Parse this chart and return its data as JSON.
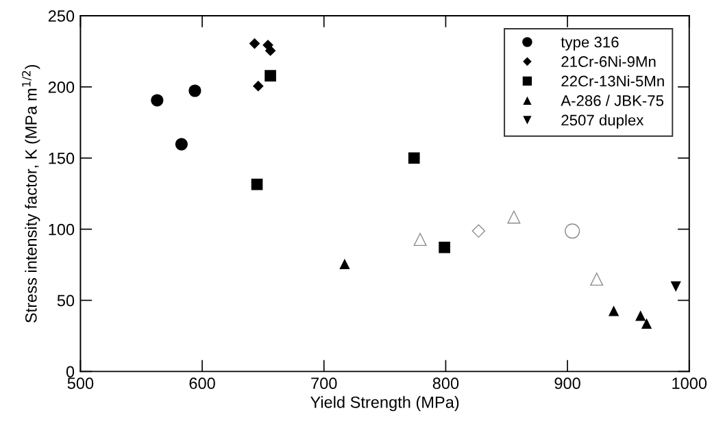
{
  "chart_data": {
    "type": "scatter",
    "xlabel": "Yield Strength (MPa)",
    "ylabel": "Stress intensity factor, K (MPa m$^{1/2}$)",
    "xlim": [
      500,
      1000
    ],
    "ylim": [
      0,
      250
    ],
    "xticks": [
      500,
      600,
      700,
      800,
      900,
      1000
    ],
    "yticks": [
      0,
      50,
      100,
      150,
      200,
      250
    ],
    "grid": false,
    "legend": "top right",
    "series": [
      {
        "name": "type 316",
        "color": "#000000",
        "marker": "circle",
        "x": [
          563,
          583,
          594
        ],
        "values": [
          190.6,
          159.7,
          197.3
        ]
      },
      {
        "name": "21Cr-6Ni-9Mn",
        "color": "#000000",
        "marker": "diamond",
        "x": [
          643,
          654,
          656,
          646
        ],
        "values": [
          230.5,
          229.4,
          225.5,
          200.6
        ]
      },
      {
        "name": "22Cr-13Ni-5Mn",
        "color": "#000000",
        "marker": "square",
        "x": [
          656,
          645,
          774,
          799
        ],
        "values": [
          207.8,
          131.5,
          150,
          87.2
        ]
      },
      {
        "name": "A-286 / JBK-75",
        "color": "#000000",
        "marker": "triangle",
        "x": [
          717,
          938,
          960,
          965
        ],
        "values": [
          75.6,
          42.6,
          39.2,
          33.7
        ]
      },
      {
        "name": "2507 duplex",
        "color": "#000000",
        "marker": "triangle_down",
        "x": [
          989
        ],
        "values": [
          59.7
        ]
      },
      {
        "color": "#8c8c8c",
        "marker": "triangle",
        "x": [
          779,
          856,
          924
        ],
        "values": [
          92.8,
          108.5,
          64.9
        ]
      },
      {
        "color": "#8c8c8c",
        "marker": "diamond",
        "x": [
          827
        ],
        "values": [
          98.7
        ]
      },
      {
        "color": "#8c8c8c",
        "marker": "circle",
        "x": [
          904
        ],
        "values": [
          98.7
        ]
      }
    ]
  }
}
